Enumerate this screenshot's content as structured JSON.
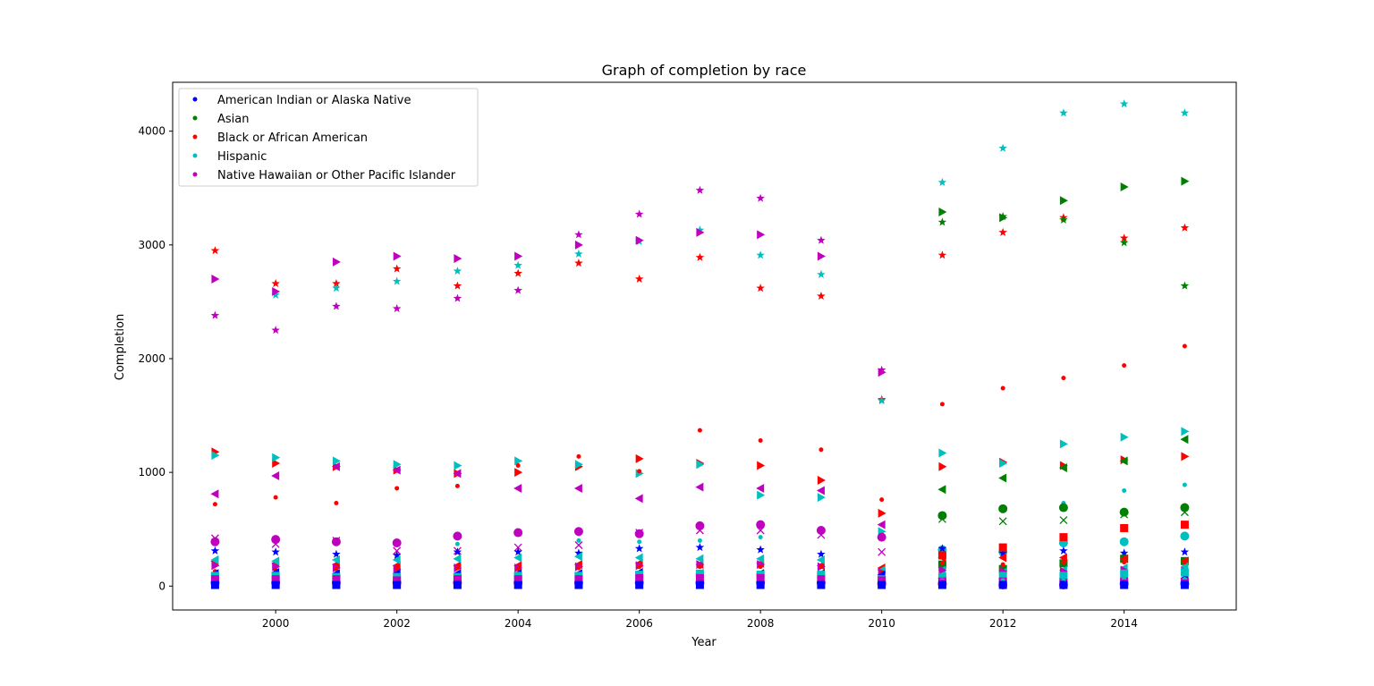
{
  "chart_data": {
    "type": "scatter",
    "title": "Graph of completion by race",
    "xlabel": "Year",
    "ylabel": "Completion",
    "xlim": [
      1998.3,
      2015.85
    ],
    "ylim": [
      -210,
      4430
    ],
    "xticks": [
      2000,
      2002,
      2004,
      2006,
      2008,
      2010,
      2012,
      2014
    ],
    "yticks": [
      0,
      1000,
      2000,
      3000,
      4000
    ],
    "grid": false,
    "legend_position": "upper-left",
    "legend": [
      {
        "label": "American Indian or Alaska Native",
        "color": "#0000ff"
      },
      {
        "label": "Asian",
        "color": "#008000"
      },
      {
        "label": "Black or African American",
        "color": "#ff0000"
      },
      {
        "label": "Hispanic",
        "color": "#00bfbf"
      },
      {
        "label": "Native Hawaiian or Other Pacific Islander",
        "color": "#bf00bf"
      }
    ],
    "series": [
      {
        "color": "#ff0000",
        "marker": "star",
        "x": [
          1999,
          2000,
          2001,
          2002,
          2003,
          2004,
          2005,
          2006,
          2007,
          2008,
          2009,
          2010,
          2011,
          2012,
          2013,
          2014,
          2015
        ],
        "y": [
          2950,
          2660,
          2660,
          2790,
          2640,
          2750,
          2840,
          2700,
          2890,
          2620,
          2550,
          1640,
          2910,
          3110,
          3240,
          3060,
          3150
        ]
      },
      {
        "color": "#00bfbf",
        "marker": "star",
        "x": [
          2000,
          2001,
          2002,
          2003,
          2004,
          2005,
          2006,
          2007,
          2008,
          2009,
          2010,
          2011,
          2012,
          2013,
          2014,
          2015
        ],
        "y": [
          2560,
          2620,
          2680,
          2770,
          2820,
          2920,
          3030,
          3130,
          2910,
          2740,
          1630,
          3550,
          3850,
          4160,
          4240,
          4160
        ]
      },
      {
        "color": "#bf00bf",
        "marker": "star",
        "x": [
          1999,
          2000,
          2001,
          2002,
          2003,
          2004,
          2005,
          2006,
          2007,
          2008,
          2009,
          2010
        ],
        "y": [
          2380,
          2250,
          2460,
          2440,
          2530,
          2600,
          3090,
          3270,
          3480,
          3410,
          3040,
          1900
        ]
      },
      {
        "color": "#008000",
        "marker": "star",
        "x": [
          2011,
          2012,
          2013,
          2014,
          2015
        ],
        "y": [
          3200,
          3250,
          3220,
          3020,
          2640
        ]
      },
      {
        "color": "#bf00bf",
        "marker": "triangle-right",
        "x": [
          1999,
          2000,
          2001,
          2002,
          2003,
          2004,
          2005,
          2006,
          2007,
          2008,
          2009,
          2010
        ],
        "y": [
          2700,
          2590,
          2850,
          2900,
          2880,
          2900,
          3000,
          3040,
          3110,
          3090,
          2900,
          1880
        ]
      },
      {
        "color": "#008000",
        "marker": "triangle-right",
        "x": [
          2011,
          2012,
          2013,
          2014,
          2015
        ],
        "y": [
          3290,
          3240,
          3390,
          3510,
          3560
        ]
      },
      {
        "color": "#ff0000",
        "marker": "triangle-right",
        "x": [
          1999,
          2000,
          2001,
          2002,
          2003,
          2004,
          2005,
          2006,
          2007,
          2008,
          2009,
          2010,
          2011,
          2012,
          2013,
          2014,
          2015
        ],
        "y": [
          1180,
          1080,
          1050,
          1020,
          990,
          1000,
          1050,
          1120,
          1080,
          1060,
          930,
          640,
          1050,
          1090,
          1060,
          1110,
          1140
        ]
      },
      {
        "color": "#00bfbf",
        "marker": "triangle-right",
        "x": [
          1999,
          2000,
          2001,
          2002,
          2003,
          2004,
          2005,
          2006,
          2007,
          2008,
          2009,
          2010,
          2011,
          2012,
          2013,
          2014,
          2015
        ],
        "y": [
          1150,
          1130,
          1100,
          1070,
          1060,
          1100,
          1070,
          990,
          1070,
          800,
          780,
          480,
          1170,
          1080,
          1250,
          1310,
          1360
        ]
      },
      {
        "color": "#bf00bf",
        "marker": "triangle-left",
        "x": [
          1999,
          2000,
          2001,
          2002,
          2003,
          2004,
          2005,
          2006,
          2007,
          2008,
          2009,
          2010
        ],
        "y": [
          810,
          970,
          1050,
          1020,
          990,
          860,
          860,
          770,
          870,
          860,
          840,
          540
        ]
      },
      {
        "color": "#008000",
        "marker": "triangle-left",
        "x": [
          2011,
          2012,
          2013,
          2014,
          2015
        ],
        "y": [
          850,
          950,
          1040,
          1100,
          1290
        ]
      },
      {
        "color": "#ff0000",
        "marker": "dot",
        "x": [
          1999,
          2000,
          2001,
          2002,
          2003,
          2004,
          2005,
          2006,
          2007,
          2008,
          2009,
          2010,
          2011,
          2012,
          2013,
          2014,
          2015
        ],
        "y": [
          720,
          780,
          730,
          860,
          880,
          1060,
          1140,
          1010,
          1370,
          1280,
          1200,
          760,
          1600,
          1740,
          1830,
          1940,
          2110
        ]
      },
      {
        "color": "#00bfbf",
        "marker": "dot",
        "x": [
          2003,
          2005,
          2006,
          2007,
          2008,
          2013,
          2014,
          2015
        ],
        "y": [
          370,
          400,
          390,
          400,
          430,
          730,
          840,
          890
        ]
      },
      {
        "color": "#bf00bf",
        "marker": "circle",
        "x": [
          1999,
          2000,
          2001,
          2002,
          2003,
          2004,
          2005,
          2006,
          2007,
          2008,
          2009,
          2010
        ],
        "y": [
          390,
          410,
          390,
          380,
          440,
          470,
          480,
          460,
          530,
          540,
          490,
          430
        ]
      },
      {
        "color": "#008000",
        "marker": "circle",
        "x": [
          2011,
          2012,
          2013,
          2014,
          2015
        ],
        "y": [
          620,
          680,
          690,
          650,
          690
        ]
      },
      {
        "color": "#00bfbf",
        "marker": "circle",
        "x": [
          2011,
          2012,
          2013,
          2014,
          2015
        ],
        "y": [
          320,
          300,
          380,
          390,
          440
        ]
      },
      {
        "color": "#bf00bf",
        "marker": "x",
        "x": [
          1999,
          2000,
          2001,
          2002,
          2003,
          2004,
          2005,
          2006,
          2007,
          2008,
          2009,
          2010
        ],
        "y": [
          420,
          370,
          400,
          310,
          310,
          340,
          360,
          470,
          490,
          490,
          450,
          300
        ]
      },
      {
        "color": "#008000",
        "marker": "x",
        "x": [
          2011,
          2012,
          2013,
          2014,
          2015
        ],
        "y": [
          590,
          570,
          580,
          630,
          650
        ]
      },
      {
        "color": "#0000ff",
        "marker": "star",
        "x": [
          1999,
          2000,
          2001,
          2002,
          2003,
          2004,
          2005,
          2006,
          2007,
          2008,
          2009,
          2010,
          2011,
          2012,
          2013,
          2014,
          2015
        ],
        "y": [
          310,
          300,
          280,
          270,
          300,
          300,
          290,
          330,
          340,
          320,
          280,
          140,
          330,
          290,
          310,
          290,
          300
        ]
      },
      {
        "color": "#ff0000",
        "marker": "square",
        "x": [
          2011,
          2012,
          2013,
          2014,
          2015
        ],
        "y": [
          270,
          340,
          430,
          510,
          540
        ]
      },
      {
        "color": "#008000",
        "marker": "square",
        "x": [
          2011,
          2012,
          2013,
          2014,
          2015
        ],
        "y": [
          190,
          150,
          200,
          240,
          220
        ]
      },
      {
        "color": "#ff0000",
        "marker": "triangle-left",
        "x": [
          1999,
          2000,
          2001,
          2002,
          2003,
          2004,
          2005,
          2006,
          2007,
          2008,
          2009,
          2010,
          2011,
          2012,
          2013,
          2014,
          2015
        ],
        "y": [
          220,
          200,
          190,
          180,
          180,
          180,
          190,
          200,
          190,
          200,
          180,
          160,
          250,
          250,
          250,
          240,
          220
        ]
      },
      {
        "color": "#00bfbf",
        "marker": "triangle-left",
        "x": [
          1999,
          2000,
          2001,
          2002,
          2003,
          2004,
          2005,
          2006,
          2007,
          2008,
          2009,
          2010,
          2011,
          2012,
          2013,
          2014,
          2015
        ],
        "y": [
          230,
          220,
          230,
          230,
          240,
          250,
          260,
          250,
          240,
          240,
          230,
          140,
          140,
          120,
          140,
          160,
          170
        ]
      },
      {
        "color": "#bf00bf",
        "marker": "triangle-right",
        "x": [
          1999,
          2000,
          2001,
          2002,
          2003,
          2004,
          2005,
          2006,
          2007,
          2008,
          2009,
          2010,
          2011,
          2012,
          2013,
          2014,
          2015
        ],
        "y": [
          180,
          170,
          160,
          150,
          160,
          160,
          170,
          180,
          190,
          190,
          170,
          120,
          140,
          130,
          130,
          140,
          130
        ]
      },
      {
        "color": "#ff0000",
        "marker": "dot",
        "x": [
          1999,
          2000,
          2001,
          2002,
          2003,
          2004,
          2005,
          2006,
          2007,
          2008,
          2009,
          2010,
          2011,
          2012,
          2013,
          2014,
          2015
        ],
        "y": [
          130,
          140,
          150,
          150,
          160,
          150,
          160,
          170,
          170,
          170,
          170,
          120,
          200,
          190,
          210,
          210,
          210
        ]
      },
      {
        "color": "#0000ff",
        "marker": "triangle-left",
        "x": [
          1999,
          2000,
          2001,
          2002,
          2003,
          2004,
          2005,
          2006,
          2007,
          2008,
          2009,
          2010,
          2011,
          2012,
          2013,
          2014,
          2015
        ],
        "y": [
          110,
          120,
          110,
          110,
          110,
          110,
          110,
          120,
          110,
          110,
          110,
          100,
          70,
          60,
          70,
          60,
          70
        ]
      },
      {
        "color": "#00bfbf",
        "marker": "square",
        "x": [
          1999,
          2000,
          2001,
          2002,
          2003,
          2004,
          2005,
          2006,
          2007,
          2008,
          2009,
          2010,
          2011,
          2012,
          2013,
          2014,
          2015
        ],
        "y": [
          90,
          90,
          80,
          80,
          80,
          90,
          90,
          100,
          110,
          100,
          100,
          60,
          80,
          90,
          90,
          110,
          120
        ]
      },
      {
        "color": "#bf00bf",
        "marker": "square",
        "x": [
          1999,
          2000,
          2001,
          2002,
          2003,
          2004,
          2005,
          2006,
          2007,
          2008,
          2009,
          2010,
          2011,
          2012,
          2013,
          2014,
          2015
        ],
        "y": [
          60,
          60,
          60,
          50,
          60,
          60,
          60,
          70,
          70,
          70,
          60,
          50,
          40,
          40,
          30,
          40,
          40
        ]
      },
      {
        "color": "#00bfbf",
        "marker": "dot",
        "x": [
          1999,
          2000,
          2001,
          2002,
          2003,
          2004,
          2005,
          2006,
          2007,
          2008,
          2009,
          2010,
          2011,
          2012,
          2013,
          2014,
          2015
        ],
        "y": [
          40,
          40,
          40,
          40,
          40,
          40,
          40,
          50,
          50,
          50,
          50,
          40,
          50,
          50,
          50,
          60,
          60
        ]
      },
      {
        "color": "#bf00bf",
        "marker": "circle",
        "x": [
          1999,
          2000,
          2001,
          2002,
          2003,
          2004,
          2005,
          2006,
          2007,
          2008,
          2009,
          2010,
          2011,
          2012,
          2013,
          2014,
          2015
        ],
        "y": [
          30,
          30,
          30,
          30,
          30,
          30,
          30,
          30,
          30,
          30,
          30,
          20,
          20,
          10,
          10,
          20,
          20
        ]
      },
      {
        "color": "#0000ff",
        "marker": "square",
        "x": [
          1999,
          2000,
          2001,
          2002,
          2003,
          2004,
          2005,
          2006,
          2007,
          2008,
          2009,
          2010,
          2011,
          2012,
          2013,
          2014,
          2015
        ],
        "y": [
          10,
          10,
          10,
          10,
          10,
          10,
          10,
          10,
          10,
          10,
          10,
          10,
          10,
          10,
          10,
          10,
          10
        ]
      },
      {
        "color": "#0000ff",
        "marker": "dot",
        "x": [
          1999,
          2000,
          2001,
          2002,
          2003,
          2004,
          2005,
          2006,
          2007,
          2008,
          2009,
          2010,
          2011,
          2012,
          2013,
          2014,
          2015
        ],
        "y": [
          0,
          0,
          0,
          0,
          0,
          0,
          0,
          0,
          0,
          0,
          0,
          0,
          0,
          0,
          0,
          0,
          0
        ]
      }
    ]
  }
}
